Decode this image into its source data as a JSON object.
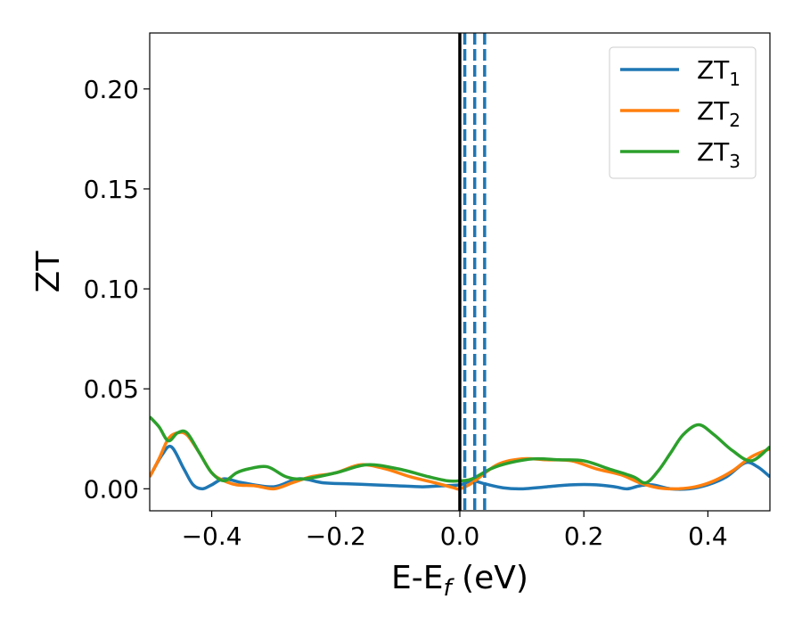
{
  "chart_data": {
    "type": "line",
    "xlabel": "E-E",
    "xlabel_sub": "f",
    "xlabel_suffix": " (eV)",
    "ylabel": "ZT",
    "xlim": [
      -0.5,
      0.5
    ],
    "ylim": [
      -0.011,
      0.228
    ],
    "xticks": [
      -0.4,
      -0.2,
      0.0,
      0.2,
      0.4
    ],
    "xtick_labels": [
      "−0.4",
      "−0.2",
      "0.0",
      "0.2",
      "0.4"
    ],
    "yticks": [
      0.0,
      0.05,
      0.1,
      0.15,
      0.2
    ],
    "ytick_labels": [
      "0.00",
      "0.05",
      "0.10",
      "0.15",
      "0.20"
    ],
    "grid": false,
    "legend_position": "top-right",
    "vertical_lines": [
      {
        "x": 0.0,
        "style": "solid",
        "color": "#000000"
      },
      {
        "x": 0.008,
        "style": "dashed",
        "color": "#1f77b4"
      },
      {
        "x": 0.024,
        "style": "dashed",
        "color": "#1f77b4"
      },
      {
        "x": 0.04,
        "style": "dashed",
        "color": "#1f77b4"
      }
    ],
    "series": [
      {
        "name": "ZT",
        "name_sub": "1",
        "color": "#1f77b4",
        "x": [
          -0.5,
          -0.48,
          -0.465,
          -0.445,
          -0.43,
          -0.415,
          -0.4,
          -0.38,
          -0.35,
          -0.3,
          -0.26,
          -0.22,
          -0.18,
          -0.14,
          -0.1,
          -0.06,
          -0.03,
          0.0,
          0.02,
          0.04,
          0.07,
          0.1,
          0.14,
          0.18,
          0.22,
          0.25,
          0.27,
          0.29,
          0.31,
          0.34,
          0.37,
          0.4,
          0.43,
          0.46,
          0.48,
          0.5
        ],
        "y": [
          0.006,
          0.017,
          0.021,
          0.01,
          0.002,
          0.0,
          0.002,
          0.005,
          0.003,
          0.001,
          0.005,
          0.003,
          0.0025,
          0.002,
          0.0015,
          0.001,
          0.0015,
          0.002,
          0.004,
          0.0025,
          0.0005,
          0.0,
          0.001,
          0.002,
          0.002,
          0.001,
          0.0,
          0.0015,
          0.002,
          0.0,
          0.0,
          0.002,
          0.006,
          0.013,
          0.011,
          0.006
        ]
      },
      {
        "name": "ZT",
        "name_sub": "2",
        "color": "#ff7f0e",
        "x": [
          -0.5,
          -0.485,
          -0.47,
          -0.455,
          -0.44,
          -0.42,
          -0.4,
          -0.38,
          -0.36,
          -0.33,
          -0.3,
          -0.27,
          -0.24,
          -0.2,
          -0.16,
          -0.12,
          -0.08,
          -0.04,
          -0.01,
          0.0,
          0.02,
          0.06,
          0.1,
          0.14,
          0.18,
          0.22,
          0.26,
          0.29,
          0.32,
          0.35,
          0.38,
          0.41,
          0.44,
          0.47,
          0.5
        ],
        "y": [
          0.006,
          0.015,
          0.025,
          0.028,
          0.027,
          0.018,
          0.008,
          0.004,
          0.002,
          0.0015,
          0.0,
          0.003,
          0.006,
          0.008,
          0.012,
          0.01,
          0.006,
          0.003,
          0.0005,
          0.0,
          0.003,
          0.012,
          0.015,
          0.0145,
          0.014,
          0.01,
          0.007,
          0.003,
          0.0005,
          0.0,
          0.001,
          0.004,
          0.009,
          0.016,
          0.02
        ]
      },
      {
        "name": "ZT",
        "name_sub": "3",
        "color": "#2ca02c",
        "x": [
          -0.5,
          -0.485,
          -0.47,
          -0.455,
          -0.44,
          -0.42,
          -0.4,
          -0.38,
          -0.36,
          -0.34,
          -0.31,
          -0.28,
          -0.25,
          -0.2,
          -0.15,
          -0.1,
          -0.05,
          -0.02,
          0.0,
          0.02,
          0.05,
          0.08,
          0.12,
          0.16,
          0.2,
          0.24,
          0.28,
          0.3,
          0.32,
          0.34,
          0.36,
          0.385,
          0.41,
          0.44,
          0.47,
          0.5
        ],
        "y": [
          0.036,
          0.031,
          0.024,
          0.028,
          0.028,
          0.018,
          0.008,
          0.004,
          0.008,
          0.01,
          0.011,
          0.006,
          0.005,
          0.008,
          0.012,
          0.01,
          0.006,
          0.004,
          0.004,
          0.005,
          0.01,
          0.013,
          0.015,
          0.0145,
          0.014,
          0.01,
          0.006,
          0.003,
          0.009,
          0.018,
          0.027,
          0.032,
          0.027,
          0.019,
          0.014,
          0.021
        ]
      }
    ]
  }
}
